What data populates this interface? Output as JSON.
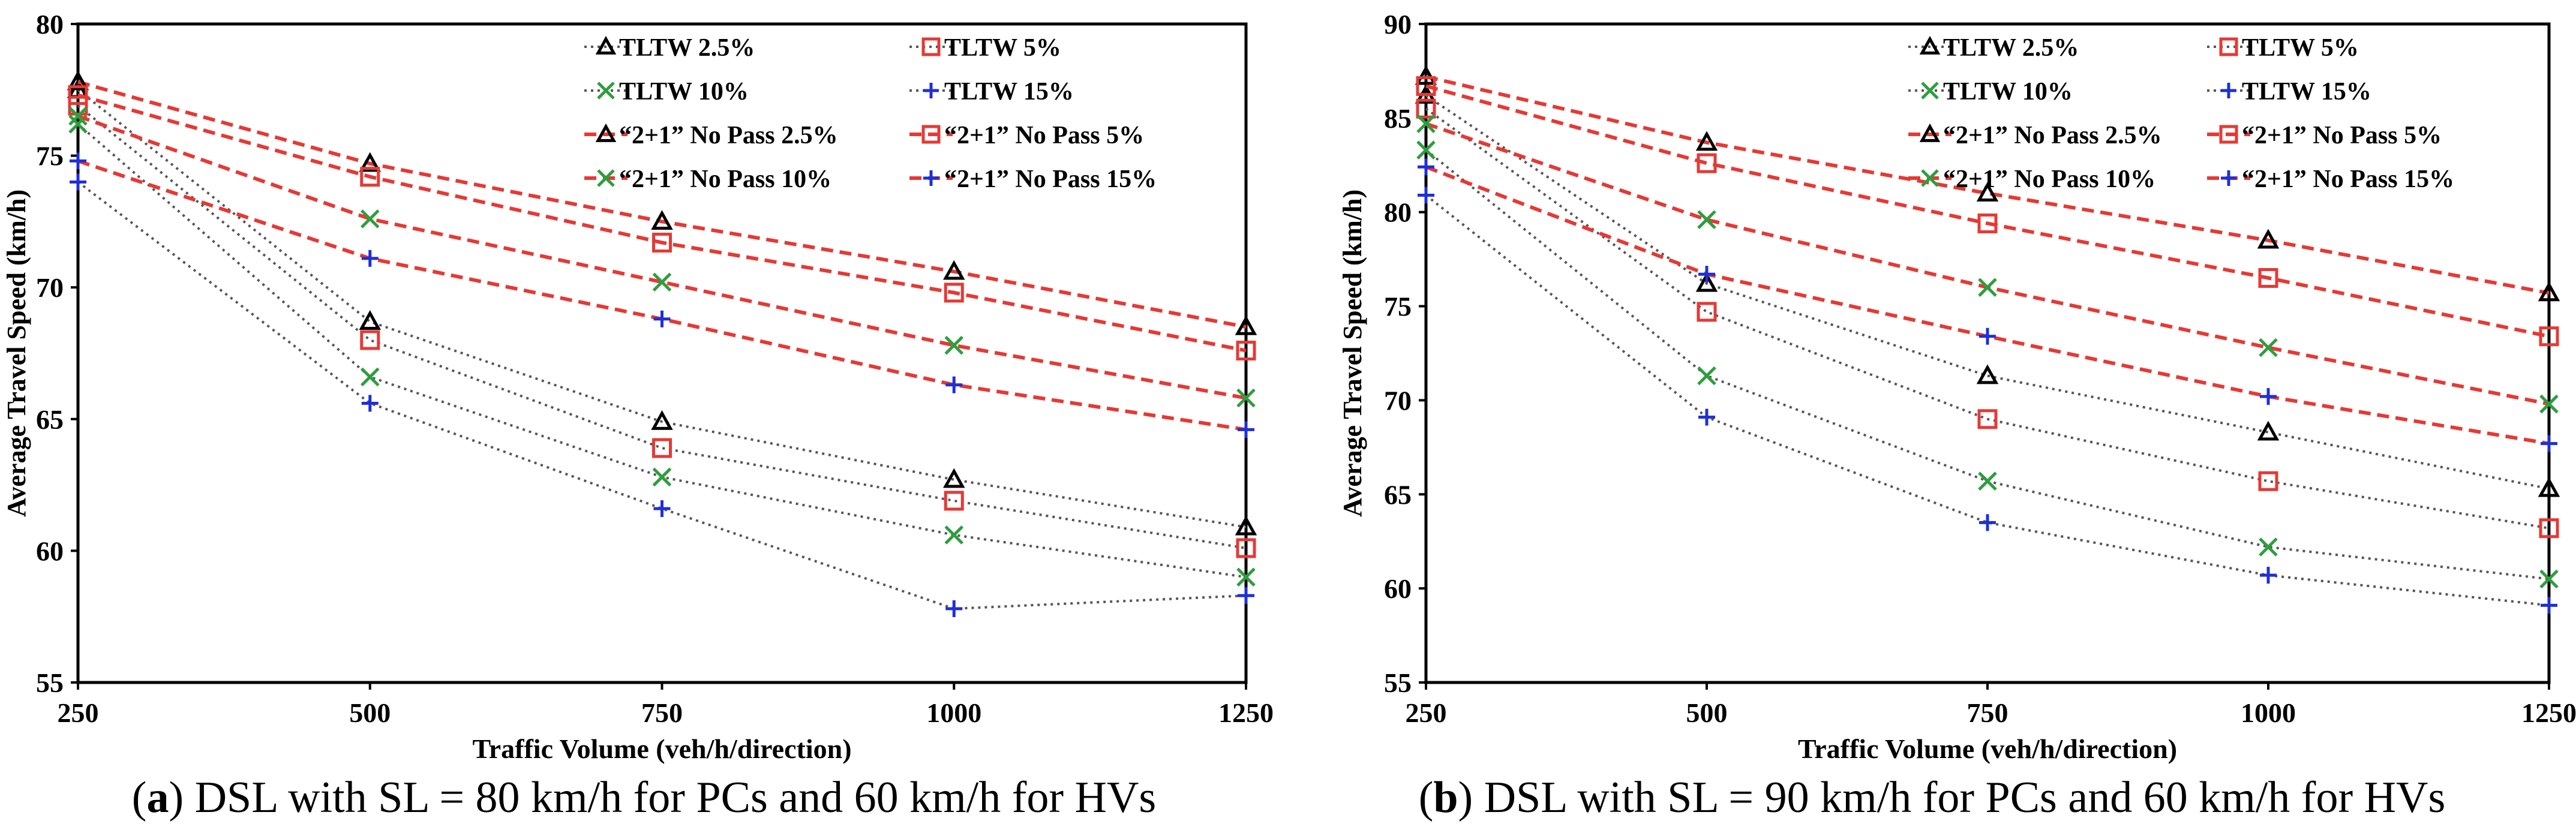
{
  "chart_data": [
    {
      "type": "line",
      "panel": "a",
      "caption": {
        "label": "a",
        "text": " DSL with SL = 80 km/h for PCs and 60 km/h for HVs"
      },
      "xlabel": "Traffic Volume (veh/h/direction)",
      "ylabel": "Average Travel Speed (km/h)",
      "x": [
        250,
        500,
        750,
        1000,
        1250
      ],
      "xticks": [
        "250",
        "500",
        "750",
        "1000",
        "1250"
      ],
      "ylim": [
        55,
        80
      ],
      "yticks": [
        55,
        60,
        65,
        70,
        75,
        80
      ],
      "legend_position": "top-right",
      "series": [
        {
          "name": "TLTW 2.5%",
          "marker": "triangle",
          "color": "#000000",
          "line": "gray-dotted",
          "values": [
            77.5,
            68.7,
            64.9,
            62.7,
            60.9
          ]
        },
        {
          "name": "TLTW 5%",
          "marker": "square",
          "color": "#e53935",
          "line": "gray-dotted",
          "values": [
            76.9,
            68.0,
            63.9,
            61.9,
            60.1
          ]
        },
        {
          "name": "TLTW 10%",
          "marker": "x",
          "color": "#2e9e3e",
          "line": "gray-dotted",
          "values": [
            76.2,
            66.6,
            62.8,
            60.6,
            59.0
          ]
        },
        {
          "name": "TLTW 15%",
          "marker": "plus",
          "color": "#1f2fd6",
          "line": "gray-dotted",
          "values": [
            74.0,
            65.6,
            61.6,
            57.8,
            58.3
          ]
        },
        {
          "name": "“2+1” No Pass 2.5%",
          "marker": "triangle",
          "color": "#000000",
          "line": "red-dashed",
          "values": [
            77.8,
            74.7,
            72.5,
            70.6,
            68.5
          ]
        },
        {
          "name": "“2+1” No Pass 5%",
          "marker": "square",
          "color": "#e53935",
          "line": "red-dashed",
          "values": [
            77.3,
            74.2,
            71.7,
            69.8,
            67.6
          ]
        },
        {
          "name": "“2+1” No Pass 10%",
          "marker": "x",
          "color": "#2e9e3e",
          "line": "red-dashed",
          "values": [
            76.5,
            72.6,
            70.2,
            67.8,
            65.8
          ]
        },
        {
          "name": "“2+1” No Pass 15%",
          "marker": "plus",
          "color": "#1f2fd6",
          "line": "red-dashed",
          "values": [
            74.8,
            71.1,
            68.8,
            66.3,
            64.6
          ]
        }
      ]
    },
    {
      "type": "line",
      "panel": "b",
      "caption": {
        "label": "b",
        "text": " DSL with SL = 90 km/h for PCs and 60 km/h for HVs"
      },
      "xlabel": "Traffic Volume (veh/h/direction)",
      "ylabel": "Average Travel Speed (km/h)",
      "x": [
        250,
        500,
        750,
        1000,
        1250
      ],
      "xticks": [
        "250",
        "500",
        "750",
        "1000",
        "1250"
      ],
      "ylim": [
        55,
        90
      ],
      "yticks": [
        55,
        60,
        65,
        70,
        75,
        80,
        85,
        90
      ],
      "legend_position": "top-right",
      "series": [
        {
          "name": "TLTW 2.5%",
          "marker": "triangle",
          "color": "#000000",
          "line": "gray-dotted",
          "values": [
            86.2,
            76.2,
            71.3,
            68.3,
            65.3
          ]
        },
        {
          "name": "TLTW 5%",
          "marker": "square",
          "color": "#e53935",
          "line": "gray-dotted",
          "values": [
            85.5,
            74.7,
            69.0,
            65.7,
            63.2
          ]
        },
        {
          "name": "TLTW 10%",
          "marker": "x",
          "color": "#2e9e3e",
          "line": "gray-dotted",
          "values": [
            83.3,
            71.3,
            65.7,
            62.2,
            60.5
          ]
        },
        {
          "name": "TLTW 15%",
          "marker": "plus",
          "color": "#1f2fd6",
          "line": "gray-dotted",
          "values": [
            80.9,
            69.1,
            63.5,
            60.7,
            59.1
          ]
        },
        {
          "name": "“2+1” No Pass 2.5%",
          "marker": "triangle",
          "color": "#000000",
          "line": "red-dashed",
          "values": [
            87.2,
            83.7,
            81.0,
            78.5,
            75.7
          ]
        },
        {
          "name": "“2+1” No Pass 5%",
          "marker": "square",
          "color": "#e53935",
          "line": "red-dashed",
          "values": [
            86.7,
            82.6,
            79.4,
            76.5,
            73.4
          ]
        },
        {
          "name": "“2+1” No Pass 10%",
          "marker": "x",
          "color": "#2e9e3e",
          "line": "red-dashed",
          "values": [
            84.7,
            79.6,
            76.0,
            72.8,
            69.8
          ]
        },
        {
          "name": "“2+1” No Pass 15%",
          "marker": "plus",
          "color": "#1f2fd6",
          "line": "red-dashed",
          "values": [
            82.4,
            76.7,
            73.4,
            70.2,
            67.7
          ]
        }
      ]
    }
  ]
}
